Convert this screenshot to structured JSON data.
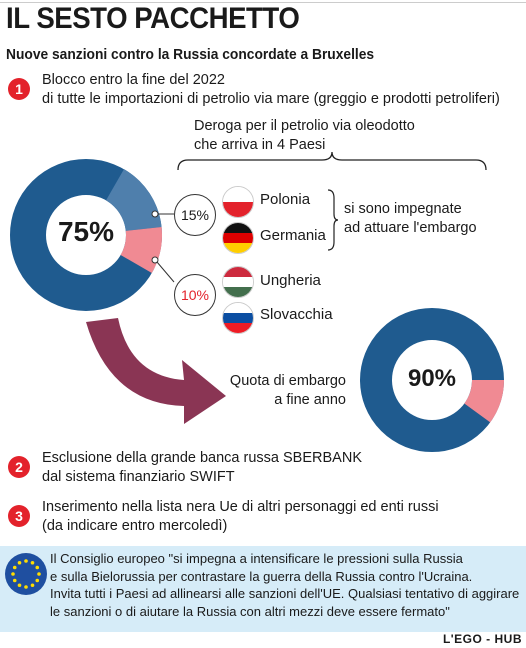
{
  "header": {
    "title": "IL SESTO PACCHETTO",
    "subtitle": "Nuove sanzioni contro la Russia concordate a Bruxelles"
  },
  "item1": {
    "number": "1",
    "line1": "Blocco entro la fine del 2022",
    "line2": "di tutte le importazioni di petrolio via mare (greggio e prodotti petroliferi)"
  },
  "deroga": {
    "line1": "Deroga per il petrolio via oleodotto",
    "line2": "che arriva in  4 Paesi"
  },
  "donut1": {
    "center": "75%",
    "pct_committed": "15%",
    "pct_exempt": "10%",
    "values": [
      75,
      15,
      10
    ]
  },
  "countries": {
    "c1": "Polonia",
    "c2": "Germania",
    "c3": "Ungheria",
    "c4": "Slovacchia"
  },
  "commit_note": {
    "line1": "si sono impegnate",
    "line2": "ad attuare l'embargo"
  },
  "quota": {
    "line1": "Quota di embargo",
    "line2": "a fine anno"
  },
  "donut2": {
    "center": "90%",
    "values": [
      90,
      10
    ]
  },
  "item2": {
    "number": "2",
    "line1": "Esclusione della grande banca russa SBERBANK",
    "line2": "dal sistema finanziario SWIFT"
  },
  "item3": {
    "number": "3",
    "line1": "Inserimento nella lista nera Ue di altri personaggi ed enti russi",
    "line2": "(da indicare entro mercoledì)"
  },
  "note": {
    "line1": "Il Consiglio europeo \"si impegna a intensificare le pressioni sulla Russia",
    "line2": "e sulla Bielorussia per contrastare la guerra della Russia contro l'Ucraina.",
    "line3": "Invita tutti i Paesi ad allinearsi alle sanzioni dell'UE. Qualsiasi tentativo di aggirare",
    "line4": "le sanzioni o di aiutare la Russia con altri mezzi deve essere fermato\""
  },
  "credit": "L'EGO - HUB",
  "colors": {
    "dark_blue": "#1f5b8f",
    "mid_blue": "#4f7fac",
    "pink": "#f08a93",
    "red": "#e3222b",
    "arrow": "#8a3554",
    "note_bg": "#d6ecf8"
  },
  "icons": {
    "eu_flag": "eu-flag-icon"
  }
}
